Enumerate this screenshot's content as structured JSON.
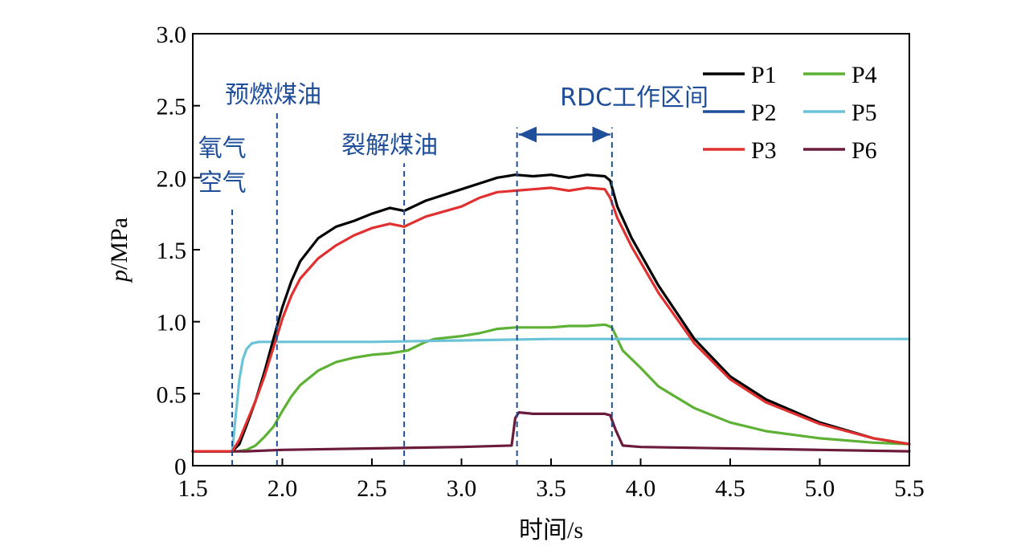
{
  "chart_data": {
    "type": "line",
    "title": "",
    "xlabel": "时间/s",
    "ylabel": {
      "italic": "p",
      "rest": "/MPa"
    },
    "xlim": [
      1.5,
      5.5
    ],
    "ylim": [
      0,
      3.0
    ],
    "x_ticks": [
      1.5,
      2.0,
      2.5,
      3.0,
      3.5,
      4.0,
      4.5,
      5.0,
      5.5
    ],
    "x_tick_labels": [
      "1.5",
      "2.0",
      "2.5",
      "3.0",
      "3.5",
      "4.0",
      "4.5",
      "5.0",
      "5.5"
    ],
    "y_ticks": [
      0,
      0.5,
      1.0,
      1.5,
      2.0,
      2.5,
      3.0
    ],
    "y_tick_labels": [
      "0",
      "0.5",
      "1.0",
      "1.5",
      "2.0",
      "2.5",
      "3.0"
    ],
    "grid": false,
    "legend_position": "top-right",
    "series": [
      {
        "name": "P1",
        "color": "#000000",
        "x": [
          1.5,
          1.72,
          1.76,
          1.8,
          1.85,
          1.9,
          1.95,
          2.0,
          2.05,
          2.1,
          2.2,
          2.3,
          2.4,
          2.5,
          2.6,
          2.68,
          2.8,
          3.0,
          3.1,
          3.2,
          3.3,
          3.4,
          3.5,
          3.6,
          3.7,
          3.8,
          3.83,
          3.87,
          3.95,
          4.1,
          4.3,
          4.5,
          4.7,
          5.0,
          5.3,
          5.5
        ],
        "y": [
          0.1,
          0.1,
          0.15,
          0.28,
          0.45,
          0.65,
          0.88,
          1.1,
          1.28,
          1.42,
          1.58,
          1.66,
          1.7,
          1.75,
          1.79,
          1.77,
          1.84,
          1.92,
          1.96,
          2.0,
          2.02,
          2.01,
          2.02,
          2.0,
          2.02,
          2.01,
          1.98,
          1.8,
          1.58,
          1.25,
          0.88,
          0.62,
          0.46,
          0.3,
          0.19,
          0.15
        ]
      },
      {
        "name": "P2",
        "color": "#1f4e9a",
        "x": [],
        "y": []
      },
      {
        "name": "P3",
        "color": "#e03030",
        "x": [
          1.5,
          1.72,
          1.76,
          1.8,
          1.85,
          1.9,
          1.95,
          2.0,
          2.05,
          2.1,
          2.2,
          2.3,
          2.4,
          2.5,
          2.6,
          2.68,
          2.8,
          3.0,
          3.1,
          3.2,
          3.3,
          3.4,
          3.5,
          3.6,
          3.7,
          3.8,
          3.83,
          3.87,
          3.95,
          4.1,
          4.3,
          4.5,
          4.7,
          5.0,
          5.3,
          5.5
        ],
        "y": [
          0.1,
          0.1,
          0.18,
          0.3,
          0.45,
          0.62,
          0.82,
          1.02,
          1.18,
          1.3,
          1.44,
          1.53,
          1.6,
          1.65,
          1.68,
          1.66,
          1.73,
          1.8,
          1.86,
          1.9,
          1.91,
          1.92,
          1.93,
          1.91,
          1.93,
          1.92,
          1.86,
          1.72,
          1.52,
          1.2,
          0.85,
          0.6,
          0.44,
          0.29,
          0.19,
          0.15
        ]
      },
      {
        "name": "P4",
        "color": "#5db135",
        "x": [
          1.5,
          1.75,
          1.8,
          1.85,
          1.9,
          1.95,
          2.0,
          2.05,
          2.1,
          2.2,
          2.3,
          2.4,
          2.5,
          2.6,
          2.7,
          2.8,
          2.85,
          3.0,
          3.1,
          3.2,
          3.3,
          3.4,
          3.5,
          3.6,
          3.7,
          3.8,
          3.84,
          3.9,
          4.0,
          4.1,
          4.3,
          4.5,
          4.7,
          5.0,
          5.3,
          5.5
        ],
        "y": [
          0.1,
          0.1,
          0.11,
          0.14,
          0.2,
          0.27,
          0.38,
          0.48,
          0.56,
          0.66,
          0.72,
          0.75,
          0.77,
          0.78,
          0.8,
          0.86,
          0.88,
          0.9,
          0.92,
          0.95,
          0.96,
          0.96,
          0.96,
          0.97,
          0.97,
          0.98,
          0.96,
          0.8,
          0.68,
          0.55,
          0.4,
          0.3,
          0.24,
          0.19,
          0.16,
          0.15
        ]
      },
      {
        "name": "P5",
        "color": "#6cc3d7",
        "x": [
          1.5,
          1.72,
          1.74,
          1.76,
          1.78,
          1.8,
          1.83,
          1.87,
          1.92,
          2.0,
          2.5,
          3.0,
          3.5,
          4.0,
          4.5,
          5.0,
          5.5
        ],
        "y": [
          0.1,
          0.1,
          0.35,
          0.6,
          0.74,
          0.81,
          0.85,
          0.86,
          0.86,
          0.86,
          0.86,
          0.87,
          0.88,
          0.88,
          0.88,
          0.88,
          0.88
        ]
      },
      {
        "name": "P6",
        "color": "#6b1b3c",
        "x": [
          1.5,
          1.8,
          2.0,
          2.5,
          3.0,
          3.28,
          3.3,
          3.32,
          3.4,
          3.6,
          3.8,
          3.83,
          3.86,
          3.9,
          4.0,
          4.5,
          5.0,
          5.5
        ],
        "y": [
          0.1,
          0.1,
          0.11,
          0.12,
          0.13,
          0.14,
          0.33,
          0.37,
          0.36,
          0.36,
          0.36,
          0.35,
          0.25,
          0.14,
          0.13,
          0.12,
          0.11,
          0.1
        ]
      }
    ],
    "vlines": [
      {
        "x": 1.72,
        "ymax": 1.78
      },
      {
        "x": 1.97,
        "ymax": 2.45
      },
      {
        "x": 2.68,
        "ymax": 2.1
      },
      {
        "x": 3.31,
        "ymax": 2.35
      },
      {
        "x": 3.84,
        "ymax": 2.35
      }
    ],
    "annotations": [
      {
        "text": "氧气",
        "x": 1.53,
        "y": 2.15
      },
      {
        "text": "空气",
        "x": 1.53,
        "y": 1.91
      },
      {
        "text": "预燃煤油",
        "x": 1.68,
        "y": 2.52
      },
      {
        "text": "裂解煤油",
        "x": 2.33,
        "y": 2.17
      },
      {
        "text": "RDC工作区间",
        "x": 3.55,
        "y": 2.5
      }
    ],
    "range_arrow": {
      "x1": 3.31,
      "x2": 3.84,
      "y": 2.3
    },
    "annotation_color": "#1f4e9a"
  }
}
